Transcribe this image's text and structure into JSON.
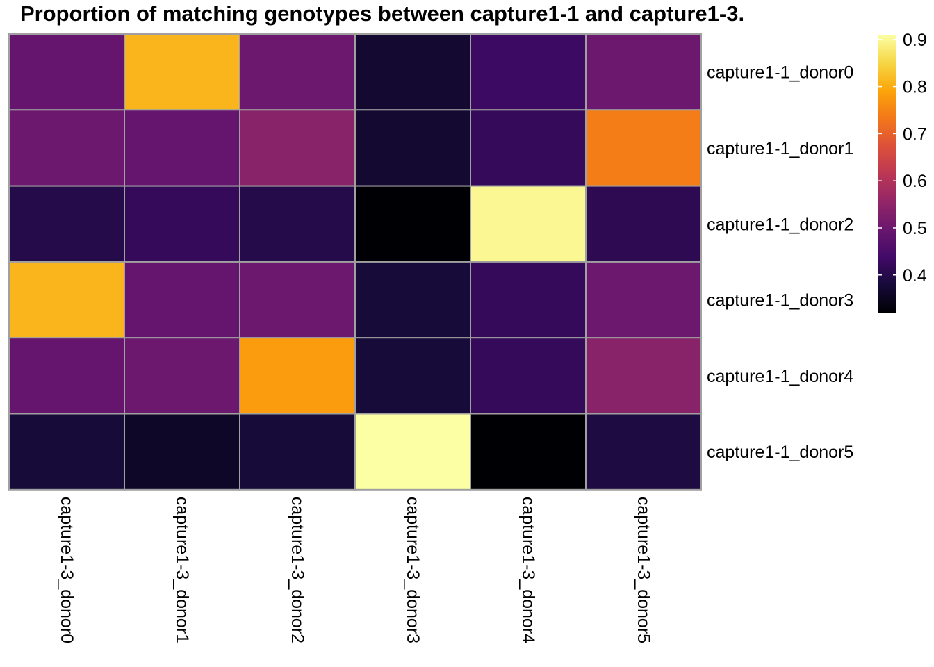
{
  "chart_data": {
    "type": "heatmap",
    "title": "Proportion of matching genotypes between capture1-1 and capture1-3.",
    "rows": [
      "capture1-1_donor0",
      "capture1-1_donor1",
      "capture1-1_donor2",
      "capture1-1_donor3",
      "capture1-1_donor4",
      "capture1-1_donor5"
    ],
    "columns": [
      "capture1-3_donor0",
      "capture1-3_donor1",
      "capture1-3_donor2",
      "capture1-3_donor3",
      "capture1-3_donor4",
      "capture1-3_donor5"
    ],
    "values": [
      [
        0.49,
        0.81,
        0.5,
        0.37,
        0.43,
        0.5
      ],
      [
        0.5,
        0.49,
        0.54,
        0.37,
        0.42,
        0.74
      ],
      [
        0.4,
        0.42,
        0.4,
        0.32,
        0.9,
        0.41
      ],
      [
        0.81,
        0.49,
        0.5,
        0.38,
        0.42,
        0.5
      ],
      [
        0.49,
        0.5,
        0.78,
        0.38,
        0.42,
        0.54
      ],
      [
        0.38,
        0.36,
        0.38,
        0.91,
        0.32,
        0.39
      ]
    ],
    "colorbar": {
      "ticks": [
        "0.9",
        "0.8",
        "0.7",
        "0.6",
        "0.5",
        "0.4"
      ],
      "tick_values": [
        0.9,
        0.8,
        0.7,
        0.6,
        0.5,
        0.4
      ],
      "range": [
        0.32,
        0.91
      ],
      "colormap": "inferno"
    },
    "cell_border_color": "#a0a0a0",
    "legend_position": "right"
  }
}
